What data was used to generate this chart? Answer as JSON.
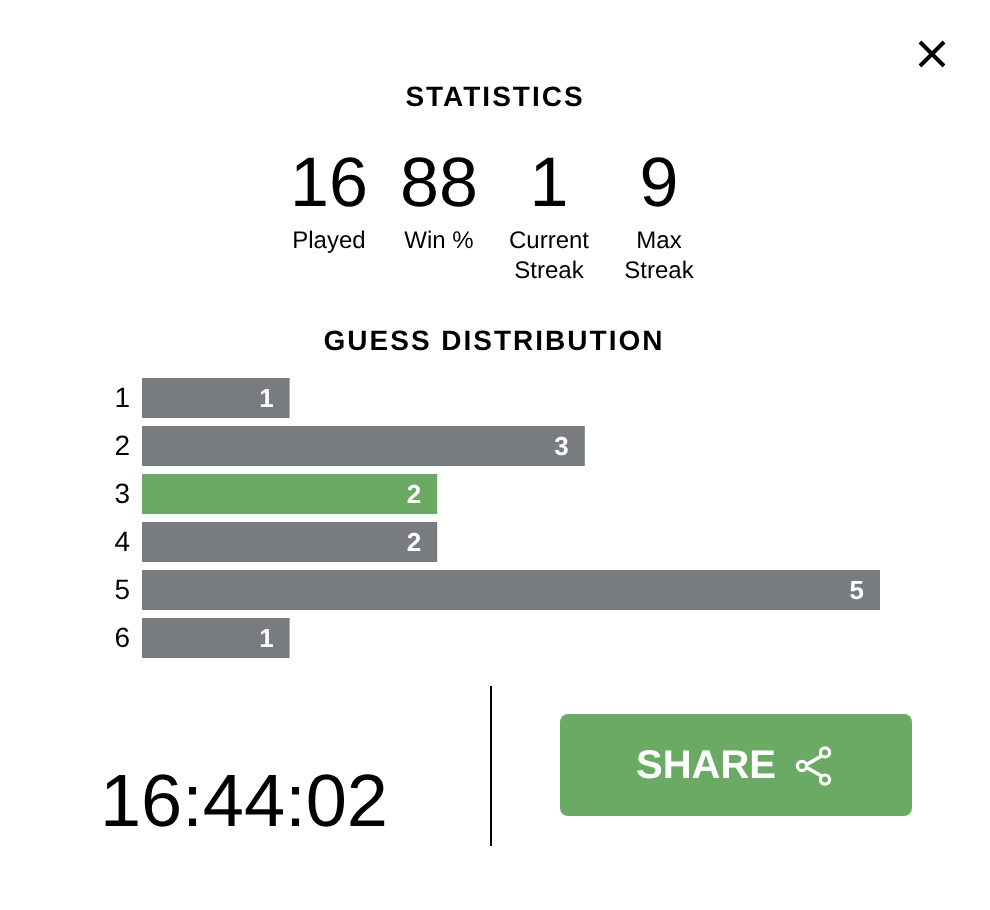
{
  "chart_data": [
    {
      "type": "other",
      "title": "STATISTICS",
      "categories": [
        "Played",
        "Win %",
        "Current Streak",
        "Max Streak"
      ],
      "values": [
        16,
        88,
        1,
        9
      ],
      "data_labels": true
    },
    {
      "type": "bar",
      "orientation": "horizontal",
      "title": "GUESS DISTRIBUTION",
      "categories": [
        "1",
        "2",
        "3",
        "4",
        "5",
        "6"
      ],
      "values": [
        1,
        3,
        2,
        2,
        5,
        1
      ],
      "colors": [
        "#787c7e",
        "#787c7e",
        "#6aaa64",
        "#787c7e",
        "#787c7e",
        "#787c7e"
      ],
      "data_labels": true
    },
    {
      "type": "other",
      "annotations": [
        "16:44:02",
        "SHARE"
      ]
    }
  ]
}
